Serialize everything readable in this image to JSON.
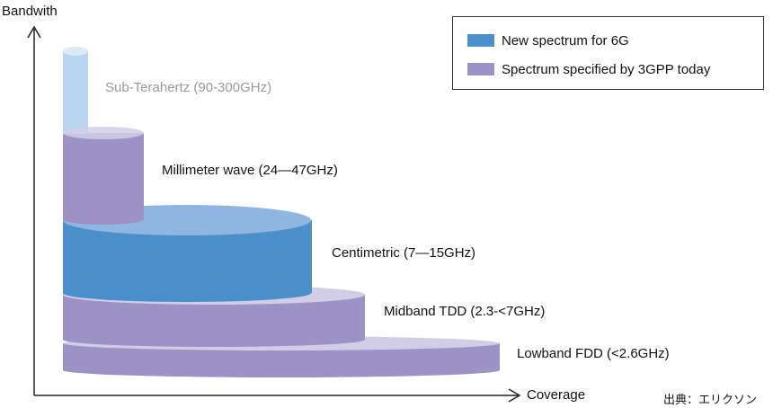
{
  "axes": {
    "y_label": "Bandwith",
    "x_label": "Coverage"
  },
  "legend": [
    {
      "label": "New spectrum for 6G",
      "color": "#4a8ecb"
    },
    {
      "label": "Spectrum specified by 3GPP today",
      "color": "#9d92c6"
    }
  ],
  "bands": [
    {
      "label": "Sub-Terahertz (90-300GHz)",
      "category": "new",
      "style": "faded"
    },
    {
      "label": "Millimeter wave (24—47GHz)",
      "category": "3gpp"
    },
    {
      "label": "Centimetric (7—15GHz)",
      "category": "new"
    },
    {
      "label": "Midband TDD (2.3-<7GHz)",
      "category": "3gpp"
    },
    {
      "label": "Lowband FDD (<2.6GHz)",
      "category": "3gpp"
    }
  ],
  "source": "出典：エリクソン",
  "colors": {
    "new_side": "#4a8ecb",
    "new_top": "#8fb6e0",
    "spec_side": "#9d92c6",
    "spec_top": "#d1cde6",
    "faded_side": "#b9d4ee",
    "faded_top": "#dde9f6",
    "axis": "#222222"
  }
}
